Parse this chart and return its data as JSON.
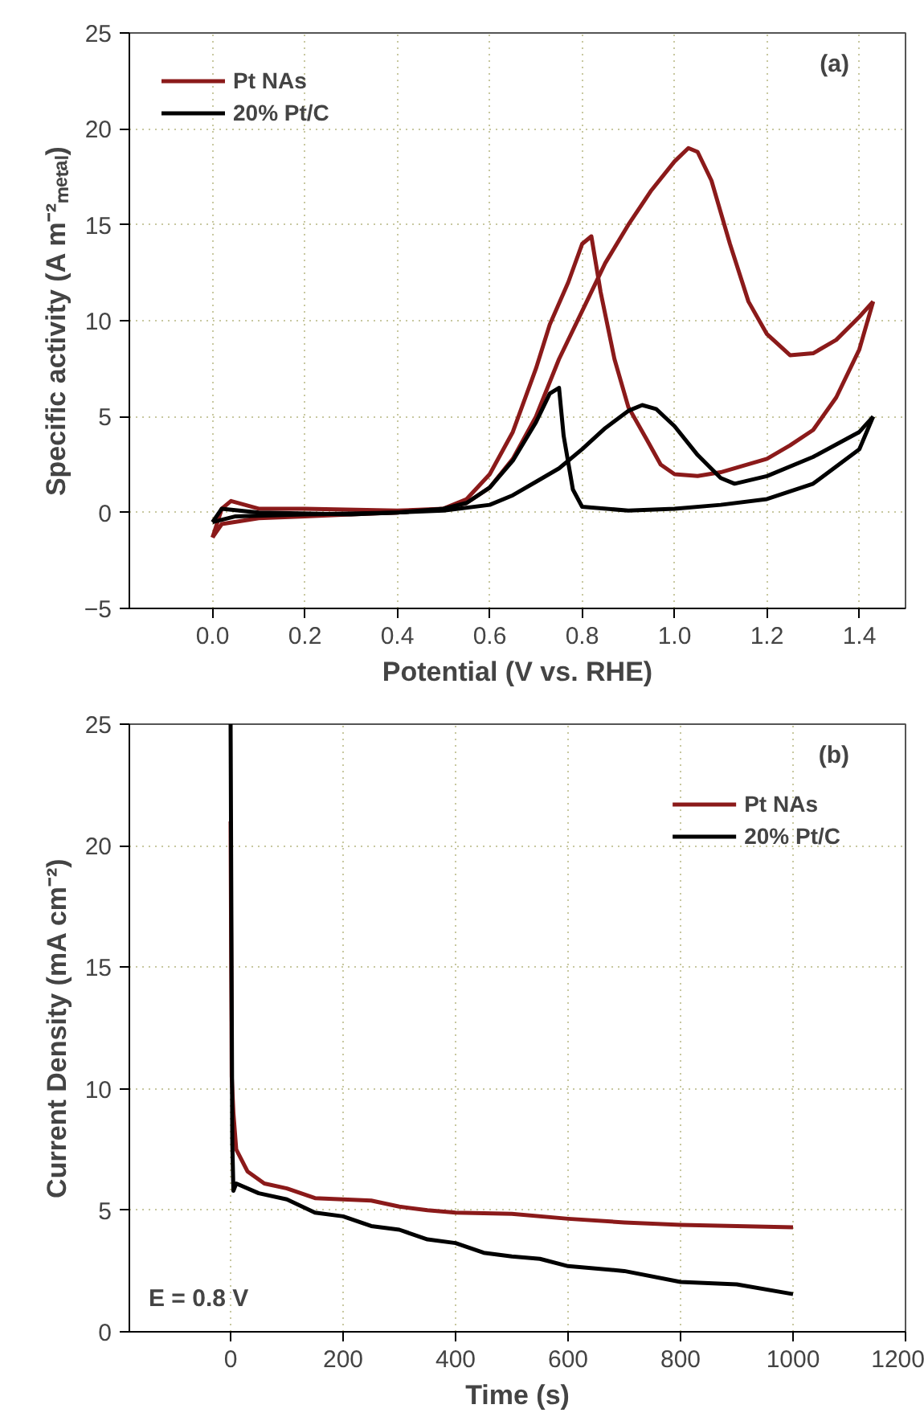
{
  "chart_data": [
    {
      "type": "line",
      "xlabel": "Potential (V vs. RHE)",
      "ylabel": "Specific activity (A m⁻²ₘₑₜₐₗ)",
      "xlim": [
        -0.18,
        1.5
      ],
      "ylim": [
        -5,
        25
      ],
      "xticks": [
        {
          "value": 0,
          "label": "0.0"
        },
        0.2,
        0.4,
        0.6,
        0.8,
        {
          "value": 1,
          "label": "1.0"
        },
        1.2,
        1.4
      ],
      "yticks": [
        -5,
        0,
        5,
        10,
        15,
        20,
        25
      ],
      "grid": true,
      "legend": "top left",
      "annotations": [
        "(a)"
      ],
      "series": [
        {
          "name": "Pt NAs",
          "color": "#8b1a1a",
          "x": [
            0.0,
            0.02,
            0.04,
            0.1,
            0.2,
            0.4,
            0.5,
            0.55,
            0.6,
            0.65,
            0.7,
            0.75,
            0.8,
            0.85,
            0.9,
            0.95,
            1.0,
            1.03,
            1.05,
            1.08,
            1.12,
            1.16,
            1.2,
            1.25,
            1.3,
            1.35,
            1.4,
            1.43
          ],
          "values": [
            -1.3,
            0.2,
            0.6,
            0.2,
            0.2,
            0.1,
            0.2,
            0.5,
            1.3,
            2.8,
            5,
            8,
            10.5,
            13,
            15,
            16.8,
            18.3,
            19,
            18.8,
            17.3,
            14,
            11,
            9.3,
            8.2,
            8.3,
            9,
            10.2,
            11
          ]
        },
        {
          "color": "#8b1a1a",
          "x": [
            1.43,
            1.4,
            1.35,
            1.3,
            1.25,
            1.2,
            1.1,
            1.05,
            1.0,
            0.97,
            0.94,
            0.9,
            0.87,
            0.84,
            0.82,
            0.8,
            0.77,
            0.73,
            0.7,
            0.65,
            0.6,
            0.55,
            0.5,
            0.4,
            0.3,
            0.2,
            0.1,
            0.02,
            0.0
          ],
          "values": [
            11,
            8.5,
            6,
            4.3,
            3.5,
            2.8,
            2.1,
            1.9,
            2.0,
            2.5,
            3.8,
            5.5,
            8,
            11.5,
            14.4,
            14,
            12,
            9.8,
            7.5,
            4.2,
            2,
            0.7,
            0.2,
            0.0,
            -0.1,
            -0.2,
            -0.3,
            -0.6,
            -1.3
          ]
        },
        {
          "name": "20% Pt/C",
          "color": "#000000",
          "x": [
            0.0,
            0.02,
            0.1,
            0.3,
            0.5,
            0.6,
            0.65,
            0.7,
            0.75,
            0.8,
            0.85,
            0.9,
            0.93,
            0.96,
            1.0,
            1.05,
            1.1,
            1.13,
            1.2,
            1.3,
            1.4,
            1.43
          ],
          "values": [
            -0.5,
            0.2,
            0.0,
            -0.1,
            0.1,
            0.4,
            0.9,
            1.6,
            2.3,
            3.3,
            4.4,
            5.3,
            5.6,
            5.4,
            4.5,
            3,
            1.8,
            1.5,
            1.9,
            2.9,
            4.2,
            5
          ]
        },
        {
          "color": "#000000",
          "x": [
            1.43,
            1.4,
            1.3,
            1.2,
            1.1,
            1.0,
            0.9,
            0.8,
            0.78,
            0.76,
            0.75,
            0.73,
            0.7,
            0.65,
            0.6,
            0.55,
            0.5,
            0.4,
            0.2,
            0.05,
            0.0
          ],
          "values": [
            5,
            3.3,
            1.5,
            0.7,
            0.4,
            0.2,
            0.1,
            0.3,
            1.2,
            4,
            6.5,
            6.2,
            4.7,
            2.7,
            1.3,
            0.5,
            0.2,
            0.0,
            -0.1,
            -0.2,
            -0.5
          ]
        }
      ]
    },
    {
      "type": "line",
      "xlabel": "Time (s)",
      "ylabel": "Current Density (mA cm⁻²)",
      "xlim": [
        -180,
        1200
      ],
      "ylim": [
        0,
        25
      ],
      "xticks": [
        0,
        200,
        400,
        600,
        800,
        1000,
        1200
      ],
      "yticks": [
        0,
        5,
        10,
        15,
        20,
        25
      ],
      "grid": true,
      "legend": "top right",
      "annotations": [
        "(b)",
        "E = 0.8 V"
      ],
      "series": [
        {
          "name": "Pt NAs",
          "color": "#8b1a1a",
          "x": [
            0,
            2,
            5,
            10,
            30,
            60,
            100,
            150,
            200,
            250,
            300,
            350,
            400,
            500,
            600,
            700,
            800,
            900,
            1000
          ],
          "values": [
            21,
            10.5,
            9,
            7.5,
            6.6,
            6.1,
            5.9,
            5.5,
            5.45,
            5.4,
            5.15,
            5.0,
            4.9,
            4.85,
            4.65,
            4.5,
            4.4,
            4.35,
            4.3
          ]
        },
        {
          "name": "20% Pt/C",
          "color": "#000000",
          "x": [
            0,
            3,
            5,
            10,
            50,
            100,
            150,
            200,
            250,
            300,
            350,
            400,
            450,
            500,
            550,
            600,
            700,
            800,
            900,
            1000
          ],
          "values": [
            25,
            7.8,
            5.8,
            6.1,
            5.7,
            5.45,
            4.9,
            4.75,
            4.35,
            4.2,
            3.8,
            3.65,
            3.25,
            3.1,
            3.0,
            2.7,
            2.5,
            2.05,
            1.95,
            1.55
          ]
        }
      ]
    }
  ]
}
